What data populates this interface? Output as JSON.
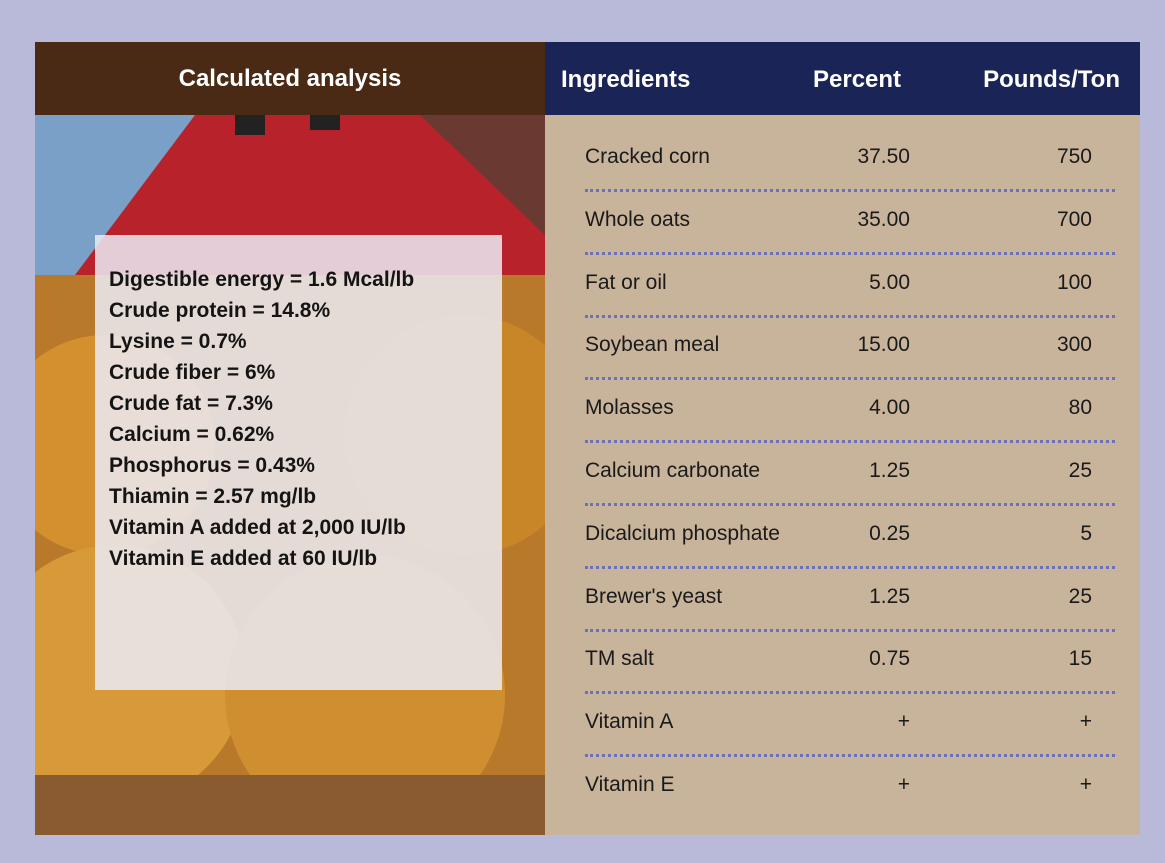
{
  "header": {
    "title": "Calculated analysis",
    "columns": [
      "Ingredients",
      "Percent",
      "Pounds/Ton"
    ]
  },
  "analysis": [
    "Digestible energy = 1.6 Mcal/lb",
    "Crude protein = 14.8%",
    "Lysine = 0.7%",
    "Crude fiber = 6%",
    "Crude fat = 7.3%",
    "Calcium = 0.62%",
    "Phosphorus = 0.43%",
    "Thiamin = 2.57 mg/lb",
    "Vitamin A added at 2,000 IU/lb",
    "Vitamin E added at 60 IU/lb"
  ],
  "table": {
    "rows": [
      [
        "Cracked corn",
        "37.50",
        "750"
      ],
      [
        "Whole oats",
        "35.00",
        "700"
      ],
      [
        "Fat or oil",
        "5.00",
        "100"
      ],
      [
        "Soybean meal",
        "15.00",
        "300"
      ],
      [
        "Molasses",
        "4.00",
        "80"
      ],
      [
        "Calcium carbonate",
        "1.25",
        "25"
      ],
      [
        "Dicalcium phosphate",
        "0.25",
        "5"
      ],
      [
        "Brewer's yeast",
        "1.25",
        "25"
      ],
      [
        "TM salt",
        "0.75",
        "15"
      ],
      [
        "Vitamin A",
        "+",
        "+"
      ],
      [
        "Vitamin E",
        "+",
        "+"
      ]
    ]
  }
}
